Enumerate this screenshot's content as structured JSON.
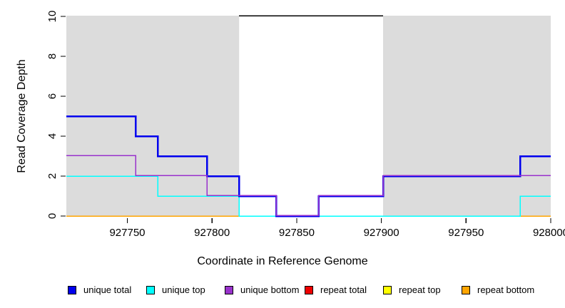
{
  "figure": {
    "xlabel": "Coordinate in Reference Genome",
    "ylabel": "Read Coverage Depth"
  },
  "chart_data": {
    "type": "line",
    "subtype": "step",
    "title": "",
    "xlabel": "Coordinate in Reference Genome",
    "ylabel": "Read Coverage Depth",
    "xlim": [
      927714,
      928000
    ],
    "ylim": [
      0,
      10
    ],
    "x_ticks": [
      927750,
      927800,
      927850,
      927900,
      927950,
      928000
    ],
    "y_ticks": [
      0,
      2,
      4,
      6,
      8,
      10
    ],
    "grid": false,
    "legend_position": "bottom",
    "shaded_regions": [
      {
        "name": "repeat-region-left",
        "from": 927714,
        "to": 927816,
        "color": "#DCDCDC"
      },
      {
        "name": "repeat-region-right",
        "from": 927901,
        "to": 928000,
        "color": "#DCDCDC"
      }
    ],
    "annotations": [
      {
        "name": "top-boundary-line",
        "y": 10,
        "from": 927816,
        "to": 927901,
        "color": "#000000"
      }
    ],
    "series": [
      {
        "name": "repeat total",
        "color": "#EE0000",
        "width": 1.5,
        "yoffset": 0,
        "steps": [
          [
            927714,
            0
          ]
        ]
      },
      {
        "name": "repeat top",
        "color": "#FFFF00",
        "width": 1.5,
        "yoffset": 0,
        "steps": [
          [
            927714,
            0
          ]
        ]
      },
      {
        "name": "repeat bottom",
        "color": "#FFA500",
        "width": 1.5,
        "yoffset": 0,
        "steps": [
          [
            927714,
            0
          ]
        ]
      },
      {
        "name": "unique top",
        "color": "#00FFFF",
        "width": 1.5,
        "yoffset": 0,
        "steps": [
          [
            927714,
            2
          ],
          [
            927768,
            1
          ],
          [
            927816,
            0
          ],
          [
            927982,
            1
          ]
        ]
      },
      {
        "name": "unique total",
        "color": "#0000EE",
        "width": 2.5,
        "yoffset": 0,
        "steps": [
          [
            927714,
            5
          ],
          [
            927755,
            4
          ],
          [
            927768,
            3
          ],
          [
            927797,
            2
          ],
          [
            927816,
            1
          ],
          [
            927838,
            0
          ],
          [
            927863,
            1
          ],
          [
            927901,
            2
          ],
          [
            927982,
            3
          ]
        ]
      },
      {
        "name": "unique bottom",
        "color": "#9932CC",
        "width": 1.5,
        "yoffset": -1,
        "steps": [
          [
            927714,
            3
          ],
          [
            927755,
            2
          ],
          [
            927797,
            1
          ],
          [
            927838,
            0
          ],
          [
            927863,
            1
          ],
          [
            927901,
            2
          ]
        ]
      }
    ],
    "legend": [
      {
        "label": "unique total",
        "color": "#0000EE"
      },
      {
        "label": "unique top",
        "color": "#00FFFF"
      },
      {
        "label": "unique bottom",
        "color": "#9932CC"
      },
      {
        "label": "repeat total",
        "color": "#EE0000"
      },
      {
        "label": "repeat top",
        "color": "#FFFF00"
      },
      {
        "label": "repeat bottom",
        "color": "#FFA500"
      }
    ]
  }
}
